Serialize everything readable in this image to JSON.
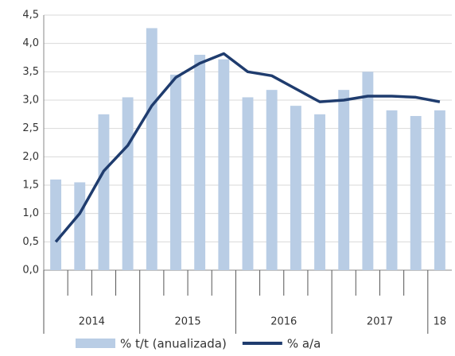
{
  "chart_data": {
    "type": "bar-line",
    "categories": [
      null,
      null,
      null,
      null,
      null,
      null,
      null,
      null,
      null,
      null,
      null,
      null,
      null,
      null,
      null,
      null,
      null
    ],
    "year_groups": [
      "2014",
      "2015",
      "2016",
      "2017",
      "18"
    ],
    "series": [
      {
        "name": "% t/t (anualizada)",
        "type": "bar",
        "color": "#b9cde5",
        "values": [
          1.6,
          1.55,
          2.75,
          3.05,
          4.27,
          3.45,
          3.8,
          3.72,
          3.05,
          3.18,
          2.9,
          2.75,
          3.18,
          3.5,
          2.82,
          2.72,
          2.82
        ]
      },
      {
        "name": "% a/a",
        "type": "line",
        "color": "#1f3c6e",
        "values": [
          0.5,
          1.0,
          1.75,
          2.2,
          2.9,
          3.4,
          3.65,
          3.82,
          3.5,
          3.43,
          3.2,
          2.97,
          3.0,
          3.07,
          3.07,
          3.05,
          2.97
        ]
      }
    ],
    "ylim": [
      0,
      4.5
    ],
    "yticks": [
      {
        "value": 0,
        "label": "0,0"
      },
      {
        "value": 0.5,
        "label": "0,5"
      },
      {
        "value": 1,
        "label": "1,0"
      },
      {
        "value": 1.5,
        "label": "1,5"
      },
      {
        "value": 2,
        "label": "2,0"
      },
      {
        "value": 2.5,
        "label": "2,5"
      },
      {
        "value": 3,
        "label": "3,0"
      },
      {
        "value": 3.5,
        "label": "3,5"
      },
      {
        "value": 4,
        "label": "4,0"
      },
      {
        "value": 4.5,
        "label": "4,5"
      }
    ],
    "grid": true
  }
}
